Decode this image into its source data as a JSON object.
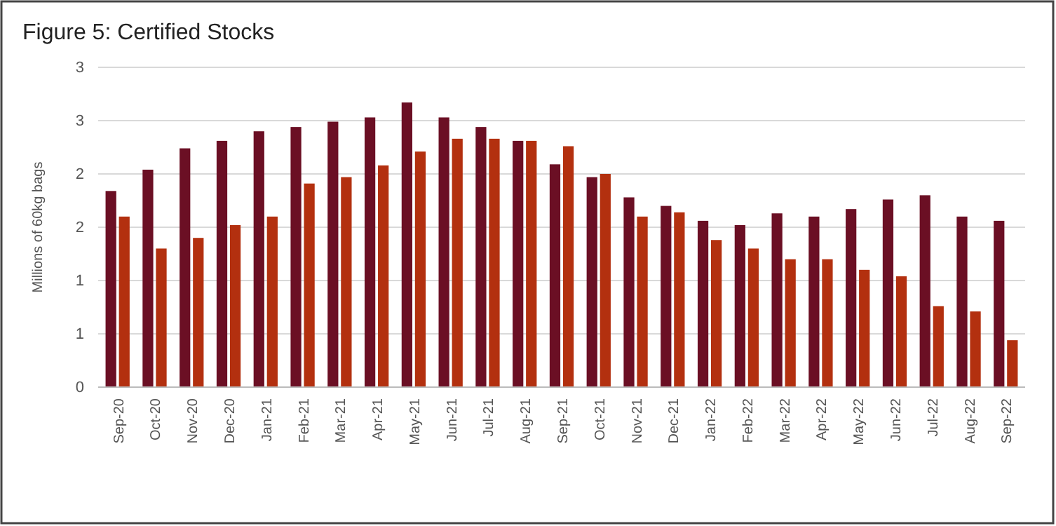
{
  "chart_data": {
    "type": "bar",
    "title": "Figure 5: Certified Stocks",
    "ylabel": "Millions of 60kg bags",
    "categories": [
      "Sep-20",
      "Oct-20",
      "Nov-20",
      "Dec-20",
      "Jan-21",
      "Feb-21",
      "Mar-21",
      "Apr-21",
      "May-21",
      "Jun-21",
      "Jul-21",
      "Aug-21",
      "Sep-21",
      "Oct-21",
      "Nov-21",
      "Dec-21",
      "Jan-22",
      "Feb-22",
      "Mar-22",
      "Apr-22",
      "May-22",
      "Jun-22",
      "Jul-22",
      "Aug-22",
      "Sep-22"
    ],
    "series": [
      {
        "color": "#6b0f24",
        "values": [
          1.84,
          2.04,
          2.24,
          2.31,
          2.4,
          2.44,
          2.49,
          2.53,
          2.67,
          2.53,
          2.44,
          2.31,
          2.09,
          1.97,
          1.78,
          1.7,
          1.56,
          1.52,
          1.63,
          1.6,
          1.67,
          1.76,
          1.8,
          1.6,
          1.56
        ]
      },
      {
        "color": "#b3300f",
        "values": [
          1.6,
          1.3,
          1.4,
          1.52,
          1.6,
          1.91,
          1.97,
          2.08,
          2.21,
          2.33,
          2.33,
          2.31,
          2.26,
          2.0,
          1.6,
          1.64,
          1.38,
          1.3,
          1.2,
          1.2,
          1.1,
          1.04,
          0.76,
          0.71,
          0.44
        ]
      }
    ],
    "ylim": [
      0,
      3
    ],
    "yticks": [
      0,
      {
        "value": 0.5,
        "label": "1"
      },
      1,
      {
        "value": 1.5,
        "label": "2"
      },
      2,
      {
        "value": 2.5,
        "label": "3"
      },
      3
    ],
    "grid": "y"
  }
}
